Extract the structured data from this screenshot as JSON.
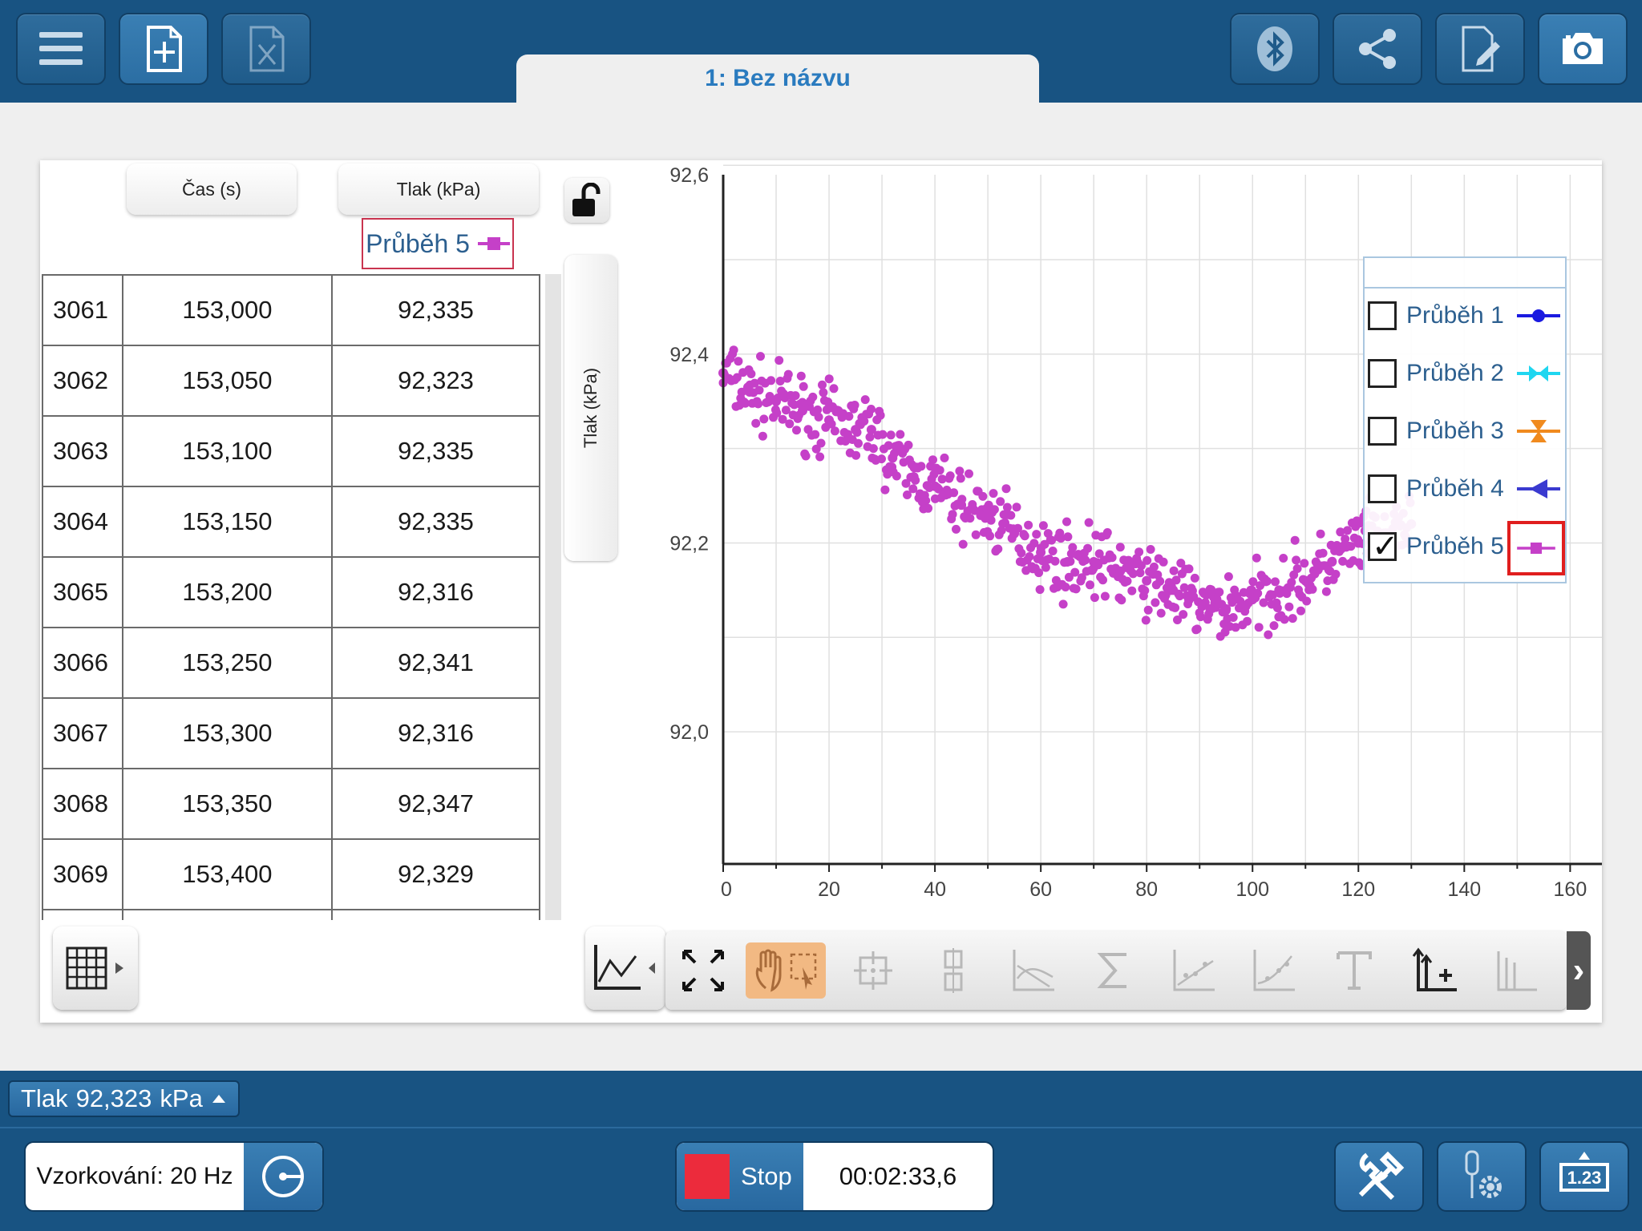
{
  "header": {
    "doc_tab": "1: Bez názvu",
    "left_buttons": [
      "menu-icon",
      "new-file-icon",
      "excel-file-icon"
    ],
    "right_buttons": [
      "bluetooth-icon",
      "share-icon",
      "edit-document-icon",
      "camera-icon"
    ]
  },
  "table": {
    "columns": [
      "Čas (s)",
      "Tlak (kPa)"
    ],
    "run_label": "Průběh 5",
    "rows": [
      [
        "3061",
        "153,000",
        "92,335"
      ],
      [
        "3062",
        "153,050",
        "92,323"
      ],
      [
        "3063",
        "153,100",
        "92,335"
      ],
      [
        "3064",
        "153,150",
        "92,335"
      ],
      [
        "3065",
        "153,200",
        "92,316"
      ],
      [
        "3066",
        "153,250",
        "92,341"
      ],
      [
        "3067",
        "153,300",
        "92,316"
      ],
      [
        "3068",
        "153,350",
        "92,347"
      ],
      [
        "3069",
        "153,400",
        "92,329"
      ],
      [
        "",
        "",
        ""
      ]
    ]
  },
  "y_axis_button": "Tlak (kPa)",
  "chart_data": {
    "type": "scatter",
    "ylabel": "Tlak (kPa)",
    "xlim": [
      0,
      166
    ],
    "ylim": [
      91.86,
      92.59
    ],
    "x_ticks": [
      "0",
      "20",
      "40",
      "60",
      "80",
      "100",
      "120",
      "140",
      "160"
    ],
    "y_ticks": [
      "92,6",
      "92,4",
      "92,2",
      "92,0"
    ],
    "y_tick_values": [
      92.6,
      92.4,
      92.2,
      92.0
    ],
    "grid": true,
    "legend_placement": "right",
    "series": [
      {
        "name": "Průběh 5",
        "color": "#c540c8",
        "x": [
          0,
          5,
          10,
          15,
          20,
          25,
          28,
          32,
          36,
          40,
          45,
          50,
          55,
          60,
          65,
          70,
          75,
          80,
          85,
          88,
          92,
          95,
          100,
          105,
          110,
          115,
          120,
          125,
          130
        ],
        "y": [
          92.38,
          92.36,
          92.35,
          92.34,
          92.33,
          92.32,
          92.32,
          92.29,
          92.27,
          92.26,
          92.24,
          92.23,
          92.21,
          92.19,
          92.18,
          92.18,
          92.17,
          92.16,
          92.15,
          92.14,
          92.13,
          92.13,
          92.14,
          92.15,
          92.16,
          92.18,
          92.2,
          92.21,
          92.22
        ]
      }
    ]
  },
  "legend": {
    "items": [
      {
        "label": "Průběh 1",
        "checked": false,
        "color": "#1a1ae0",
        "marker": "circle-line"
      },
      {
        "label": "Průběh 2",
        "checked": false,
        "color": "#1fd6f0",
        "marker": "bowtie-line"
      },
      {
        "label": "Průběh 3",
        "checked": false,
        "color": "#f08a1e",
        "marker": "hourglass-line"
      },
      {
        "label": "Průběh 4",
        "checked": false,
        "color": "#3a3ad0",
        "marker": "triangle-line"
      },
      {
        "label": "Průběh 5",
        "checked": true,
        "color": "#c540c8",
        "marker": "square-line"
      }
    ]
  },
  "graph_toolbar": [
    "autoscale-icon",
    "pan-select-icon",
    "examine-icon",
    "examine-multiple-icon",
    "tangent-icon",
    "integral-icon",
    "linear-fit-icon",
    "curve-fit-icon",
    "text-annotation-icon",
    "add-axis-icon",
    "axis-options-icon"
  ],
  "status": {
    "meter_label": "Tlak",
    "meter_value": "92,323",
    "meter_unit": "kPa",
    "sampling": "Vzorkování: 20 Hz",
    "stop_label": "Stop",
    "timer": "00:02:33,6",
    "value_button_label": "1.23"
  }
}
